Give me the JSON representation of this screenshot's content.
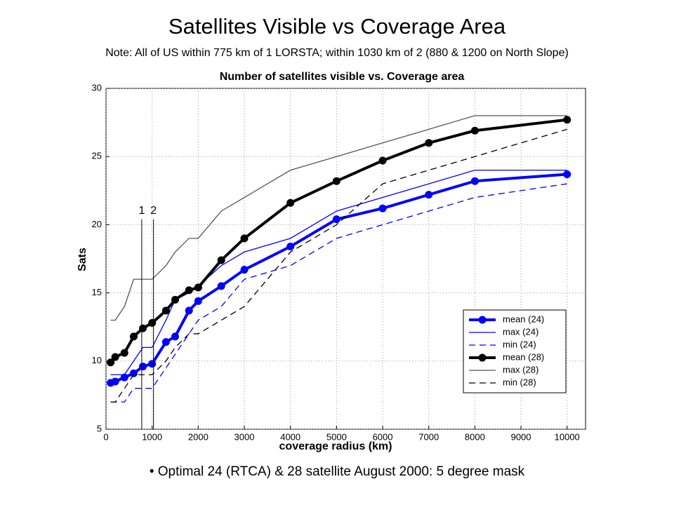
{
  "chart_data": {
    "type": "line",
    "title": "Satellites Visible vs Coverage Area",
    "subtitle": "Note: All of US within 775 km of 1 LORSTA; within 1030 km of 2 (880 & 1200 on North Slope)",
    "plot_title": "Number of satellites visible vs. Coverage area",
    "xlabel": "coverage radius (km)",
    "ylabel": "Sats",
    "footer": "• Optimal 24 (RTCA) & 28 satellite August 2000: 5 degree mask",
    "x": [
      100,
      200,
      400,
      600,
      800,
      1000,
      1300,
      1500,
      1800,
      2000,
      2500,
      3000,
      4000,
      5000,
      6000,
      7000,
      8000,
      10000
    ],
    "series": [
      {
        "name": "mean (24)",
        "color": "#0000ff",
        "line_style": "solid",
        "markers": true,
        "values": [
          8.4,
          8.5,
          8.8,
          9.1,
          9.6,
          9.8,
          11.4,
          11.8,
          13.7,
          14.4,
          15.5,
          16.7,
          18.4,
          20.4,
          21.2,
          22.2,
          23.2,
          23.7
        ]
      },
      {
        "name": "max (24)",
        "color": "#0000ff",
        "line_style": "solid",
        "markers": false,
        "values": [
          9,
          9,
          9,
          10,
          11,
          11,
          13,
          14.5,
          15,
          15.5,
          17,
          18,
          19,
          21,
          22,
          23,
          24,
          24
        ]
      },
      {
        "name": "min (24)",
        "color": "#0000ff",
        "line_style": "dashed",
        "markers": false,
        "values": [
          7,
          7,
          7,
          8,
          8,
          8,
          9.5,
          10.5,
          12,
          13,
          14,
          16,
          17,
          19,
          20,
          21,
          22,
          23
        ]
      },
      {
        "name": "mean (28)",
        "color": "#000000",
        "line_style": "solid",
        "markers": true,
        "values": [
          9.9,
          10.3,
          10.6,
          11.8,
          12.4,
          12.8,
          13.7,
          14.5,
          15.2,
          15.4,
          17.4,
          19.0,
          21.6,
          23.2,
          24.7,
          26.0,
          26.9,
          27.7
        ]
      },
      {
        "name": "max (28)",
        "color": "#555555",
        "line_style": "solid",
        "markers": false,
        "values": [
          13,
          13,
          14,
          16,
          16,
          16,
          17,
          18,
          19,
          19,
          21,
          22,
          24,
          25,
          26,
          27,
          28,
          28
        ]
      },
      {
        "name": "min (28)",
        "color": "#000000",
        "line_style": "dashed",
        "markers": false,
        "values": [
          7,
          7,
          8,
          9,
          9,
          9,
          10,
          11,
          12,
          12,
          13,
          14,
          18,
          20,
          23,
          24,
          25,
          27
        ]
      }
    ],
    "vlines": [
      {
        "label": "1",
        "x": 775,
        "top": 20.4
      },
      {
        "label": "2",
        "x": 1030,
        "top": 20.4
      }
    ],
    "xlim": [
      0,
      10400
    ],
    "ylim": [
      5,
      30
    ],
    "xticks": [
      0,
      1000,
      2000,
      3000,
      4000,
      5000,
      6000,
      7000,
      8000,
      9000,
      10000
    ],
    "yticks": [
      5,
      10,
      15,
      20,
      25,
      30
    ],
    "grid": true,
    "legend": "lower right"
  }
}
